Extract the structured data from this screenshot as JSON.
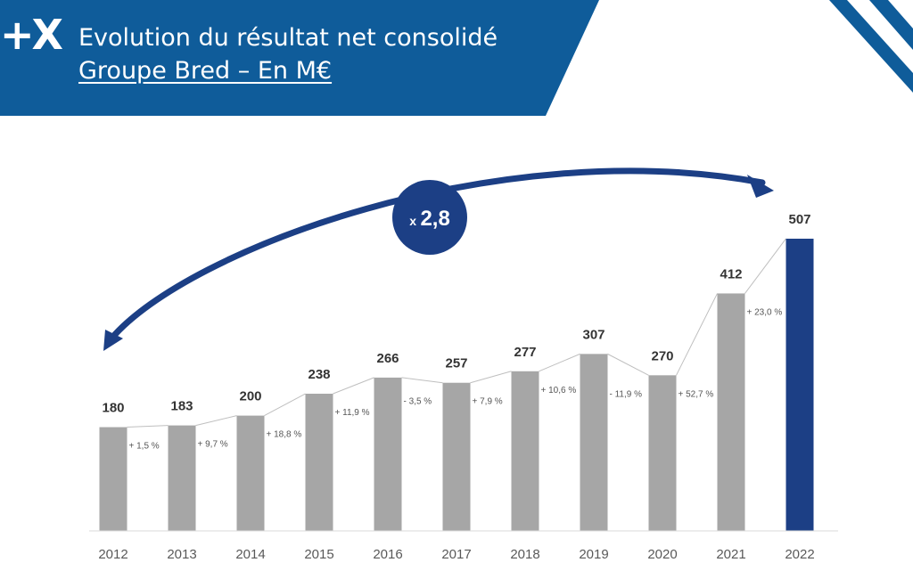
{
  "header": {
    "logo": "+X",
    "title": "Evolution du résultat net consolidé",
    "subtitle": "Groupe Bred – En M€"
  },
  "multiplier": {
    "prefix": "x",
    "value": "2,8"
  },
  "colors": {
    "header_blue": "#0f5c9a",
    "bar_gray": "#a6a6a6",
    "bar_highlight": "#1c3f85",
    "arrow_blue": "#1c3f85",
    "circle_blue": "#1c3f85",
    "connector_line": "#bfbfbf"
  },
  "chart_data": {
    "type": "bar",
    "categories": [
      "2012",
      "2013",
      "2014",
      "2015",
      "2016",
      "2017",
      "2018",
      "2019",
      "2020",
      "2021",
      "2022"
    ],
    "values": [
      180,
      183,
      200,
      238,
      266,
      257,
      277,
      307,
      270,
      412,
      507
    ],
    "value_labels": [
      "180",
      "183",
      "200",
      "238",
      "266",
      "257",
      "277",
      "307",
      "270",
      "412",
      "507"
    ],
    "growth_labels": [
      "+ 1,5 %",
      "+ 9,7 %",
      "+ 18,8 %",
      "+ 11,9 %",
      "- 3,5 %",
      "+ 7,9 %",
      "+ 10,6 %",
      "- 11,9 %",
      "+ 52,7 %",
      "+ 23,0 %"
    ],
    "highlight_category": "2022",
    "ylim": [
      0,
      560
    ],
    "grid": false,
    "legend": "none",
    "title": "",
    "xlabel": "",
    "ylabel": ""
  }
}
